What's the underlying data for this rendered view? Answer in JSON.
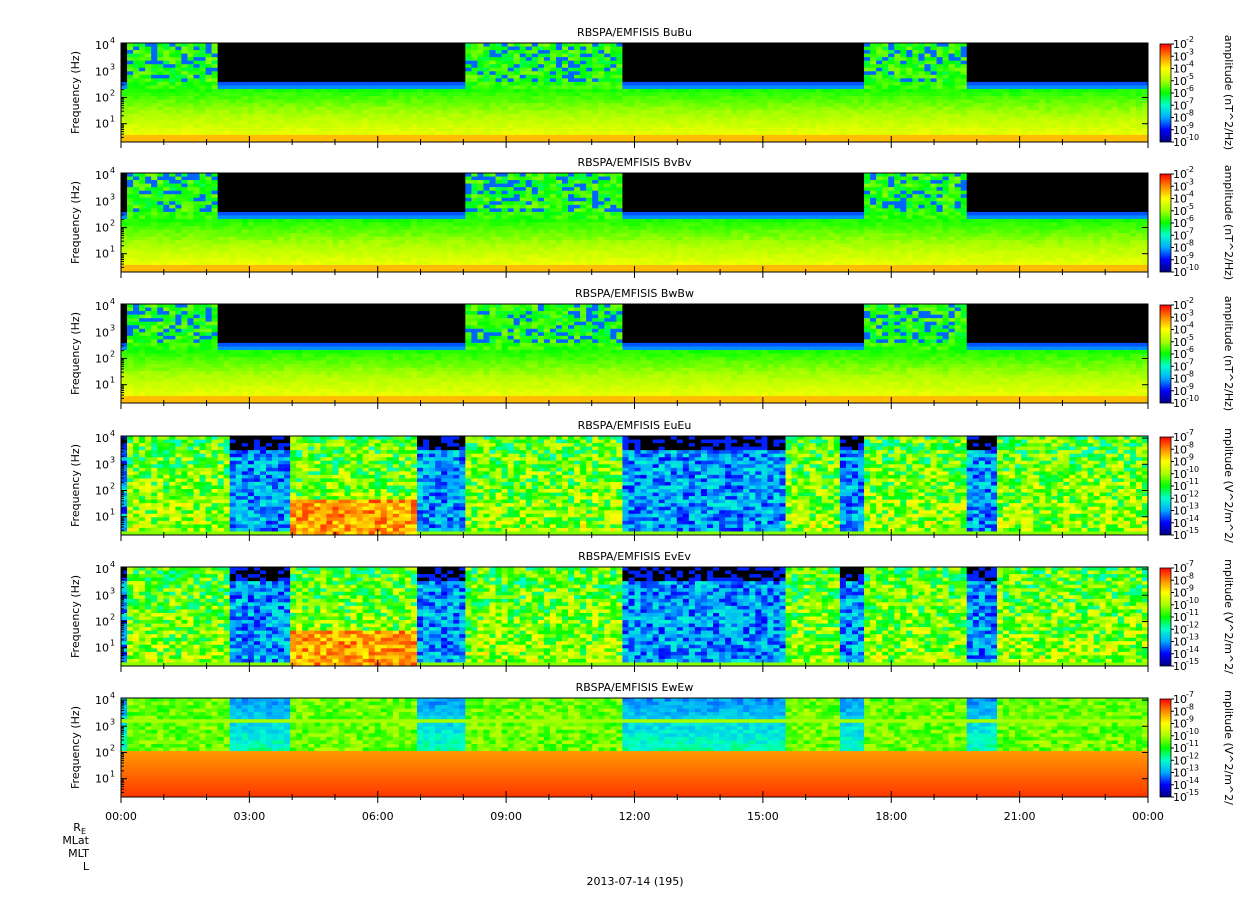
{
  "chart_data": {
    "type": "heatmap",
    "date_label": "2013-07-14 (195)",
    "x_tick_labels": [
      "00:00",
      "03:00",
      "06:00",
      "09:00",
      "12:00",
      "15:00",
      "18:00",
      "21:00",
      "00:00"
    ],
    "x_range_hours": [
      0,
      24
    ],
    "ephemeris_labels": [
      "R",
      "E",
      "MLat",
      "MLT",
      "L"
    ],
    "colormap": [
      "#000080",
      "#0000ff",
      "#00aaff",
      "#00ffcc",
      "#00ff00",
      "#aaff00",
      "#ffff00",
      "#ff8800",
      "#ff0000"
    ],
    "panels": [
      {
        "title": "RBSPA/EMFISIS  BuBu",
        "ylabel": "Frequency (Hz)",
        "yscale": "log",
        "ylim": [
          2,
          12000
        ],
        "y_tick_labels": [
          "10",
          "10",
          "10",
          "10"
        ],
        "y_tick_exponents": [
          "1",
          "2",
          "3",
          "4"
        ],
        "cbar_label": "amplitude (nT^2/Hz)",
        "cbar_tick_labels": [
          "10",
          "10",
          "10",
          "10",
          "10",
          "10",
          "10",
          "10",
          "10"
        ],
        "cbar_tick_exponents": [
          "-2",
          "-3",
          "-4",
          "-5",
          "-6",
          "-7",
          "-8",
          "-9",
          "-10"
        ],
        "log_amplitude_range": [
          -10,
          -2
        ]
      },
      {
        "title": "RBSPA/EMFISIS  BvBv",
        "ylabel": "Frequency (Hz)",
        "yscale": "log",
        "ylim": [
          2,
          12000
        ],
        "y_tick_labels": [
          "10",
          "10",
          "10",
          "10"
        ],
        "y_tick_exponents": [
          "1",
          "2",
          "3",
          "4"
        ],
        "cbar_label": "amplitude (nT^2/Hz)",
        "cbar_tick_labels": [
          "10",
          "10",
          "10",
          "10",
          "10",
          "10",
          "10",
          "10",
          "10"
        ],
        "cbar_tick_exponents": [
          "-2",
          "-3",
          "-4",
          "-5",
          "-6",
          "-7",
          "-8",
          "-9",
          "-10"
        ],
        "log_amplitude_range": [
          -10,
          -2
        ]
      },
      {
        "title": "RBSPA/EMFISIS  BwBw",
        "ylabel": "Frequency (Hz)",
        "yscale": "log",
        "ylim": [
          2,
          12000
        ],
        "y_tick_labels": [
          "10",
          "10",
          "10",
          "10"
        ],
        "y_tick_exponents": [
          "1",
          "2",
          "3",
          "4"
        ],
        "cbar_label": "amplitude (nT^2/Hz)",
        "cbar_tick_labels": [
          "10",
          "10",
          "10",
          "10",
          "10",
          "10",
          "10",
          "10",
          "10"
        ],
        "cbar_tick_exponents": [
          "-2",
          "-3",
          "-4",
          "-5",
          "-6",
          "-7",
          "-8",
          "-9",
          "-10"
        ],
        "log_amplitude_range": [
          -10,
          -2
        ]
      },
      {
        "title": "RBSPA/EMFISIS  EuEu",
        "ylabel": "Frequency (Hz)",
        "yscale": "log",
        "ylim": [
          2,
          12000
        ],
        "y_tick_labels": [
          "10",
          "10",
          "10",
          "10"
        ],
        "y_tick_exponents": [
          "1",
          "2",
          "3",
          "4"
        ],
        "cbar_label": "mplitude (V^2/m^2/",
        "cbar_tick_labels": [
          "10",
          "10",
          "10",
          "10",
          "10",
          "10",
          "10",
          "10",
          "10"
        ],
        "cbar_tick_exponents": [
          "-7",
          "-8",
          "-9",
          "-10",
          "-11",
          "-12",
          "-13",
          "-14",
          "-15"
        ],
        "log_amplitude_range": [
          -15,
          -7
        ]
      },
      {
        "title": "RBSPA/EMFISIS  EvEv",
        "ylabel": "Frequency (Hz)",
        "yscale": "log",
        "ylim": [
          2,
          12000
        ],
        "y_tick_labels": [
          "10",
          "10",
          "10",
          "10"
        ],
        "y_tick_exponents": [
          "1",
          "2",
          "3",
          "4"
        ],
        "cbar_label": "mplitude (V^2/m^2/",
        "cbar_tick_labels": [
          "10",
          "10",
          "10",
          "10",
          "10",
          "10",
          "10",
          "10",
          "10"
        ],
        "cbar_tick_exponents": [
          "-7",
          "-8",
          "-9",
          "-10",
          "-11",
          "-12",
          "-13",
          "-14",
          "-15"
        ],
        "log_amplitude_range": [
          -15,
          -7
        ]
      },
      {
        "title": "RBSPA/EMFISIS  EwEw",
        "ylabel": "Frequency (Hz)",
        "yscale": "log",
        "ylim": [
          2,
          12000
        ],
        "y_tick_labels": [
          "10",
          "10",
          "10",
          "10"
        ],
        "y_tick_exponents": [
          "1",
          "2",
          "3",
          "4"
        ],
        "cbar_label": "mplitude (V^2/m^2/",
        "cbar_tick_labels": [
          "10",
          "10",
          "10",
          "10",
          "10",
          "10",
          "10",
          "10",
          "10"
        ],
        "cbar_tick_exponents": [
          "-7",
          "-8",
          "-9",
          "-10",
          "-11",
          "-12",
          "-13",
          "-14",
          "-15"
        ],
        "log_amplitude_range": [
          -15,
          -7
        ]
      }
    ]
  }
}
